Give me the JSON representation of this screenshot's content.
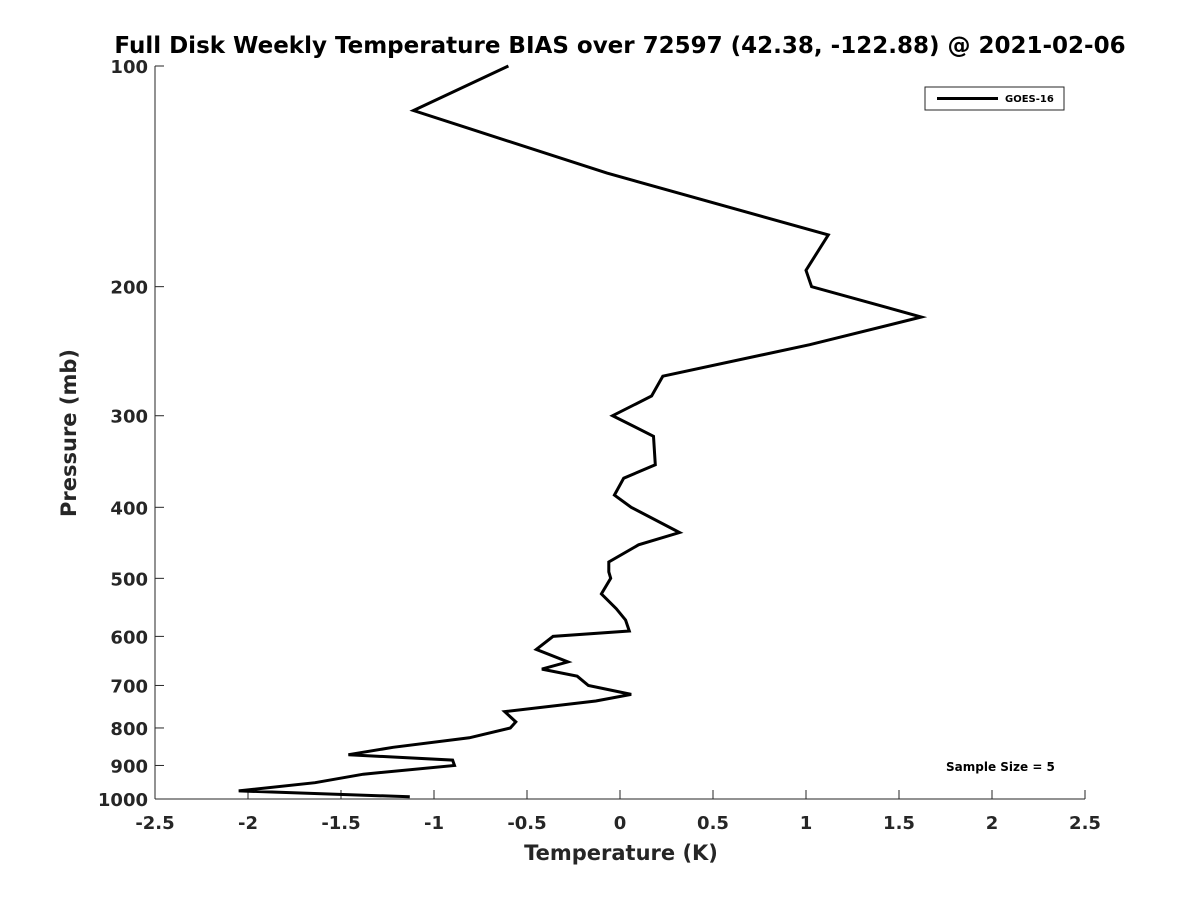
{
  "chart_data": {
    "type": "line",
    "title": "Full Disk Weekly Temperature BIAS over 72597 (42.38, -122.88) @ 2021-02-06",
    "xlabel": "Temperature (K)",
    "ylabel": "Pressure (mb)",
    "xlim": [
      -2.5,
      2.5
    ],
    "ylim": [
      100,
      1000
    ],
    "y_scale": "log",
    "y_reversed": true,
    "grid": false,
    "legend_position": "top-right",
    "x_ticks": [
      "-2.5",
      "-2",
      "-1.5",
      "-1",
      "-0.5",
      "0",
      "0.5",
      "1",
      "1.5",
      "2",
      "2.5"
    ],
    "y_ticks": [
      "100",
      "200",
      "300",
      "400",
      "500",
      "600",
      "700",
      "800",
      "900",
      "1000"
    ],
    "series": [
      {
        "name": "GOES-16",
        "color": "#000000",
        "points": [
          {
            "x": -0.6,
            "p": 100
          },
          {
            "x": -1.11,
            "p": 115
          },
          {
            "x": -0.07,
            "p": 140
          },
          {
            "x": 1.12,
            "p": 170
          },
          {
            "x": 1.0,
            "p": 190
          },
          {
            "x": 1.03,
            "p": 200
          },
          {
            "x": 1.62,
            "p": 220
          },
          {
            "x": 1.02,
            "p": 240
          },
          {
            "x": 0.23,
            "p": 265
          },
          {
            "x": 0.17,
            "p": 282
          },
          {
            "x": -0.04,
            "p": 300
          },
          {
            "x": 0.18,
            "p": 320
          },
          {
            "x": 0.19,
            "p": 350
          },
          {
            "x": 0.02,
            "p": 365
          },
          {
            "x": -0.03,
            "p": 385
          },
          {
            "x": 0.06,
            "p": 400
          },
          {
            "x": 0.32,
            "p": 433
          },
          {
            "x": 0.1,
            "p": 450
          },
          {
            "x": -0.06,
            "p": 475
          },
          {
            "x": -0.06,
            "p": 490
          },
          {
            "x": -0.05,
            "p": 500
          },
          {
            "x": -0.1,
            "p": 525
          },
          {
            "x": -0.02,
            "p": 550
          },
          {
            "x": 0.03,
            "p": 570
          },
          {
            "x": 0.05,
            "p": 590
          },
          {
            "x": -0.36,
            "p": 600
          },
          {
            "x": -0.45,
            "p": 625
          },
          {
            "x": -0.28,
            "p": 650
          },
          {
            "x": -0.42,
            "p": 665
          },
          {
            "x": -0.23,
            "p": 680
          },
          {
            "x": -0.17,
            "p": 700
          },
          {
            "x": 0.06,
            "p": 720
          },
          {
            "x": -0.13,
            "p": 735
          },
          {
            "x": -0.62,
            "p": 760
          },
          {
            "x": -0.56,
            "p": 785
          },
          {
            "x": -0.59,
            "p": 800
          },
          {
            "x": -0.81,
            "p": 825
          },
          {
            "x": -1.22,
            "p": 850
          },
          {
            "x": -1.46,
            "p": 870
          },
          {
            "x": -0.9,
            "p": 885
          },
          {
            "x": -0.89,
            "p": 900
          },
          {
            "x": -1.38,
            "p": 925
          },
          {
            "x": -1.64,
            "p": 950
          },
          {
            "x": -2.05,
            "p": 975
          },
          {
            "x": -1.13,
            "p": 993
          }
        ]
      }
    ],
    "annotation": "Sample Size = 5"
  }
}
